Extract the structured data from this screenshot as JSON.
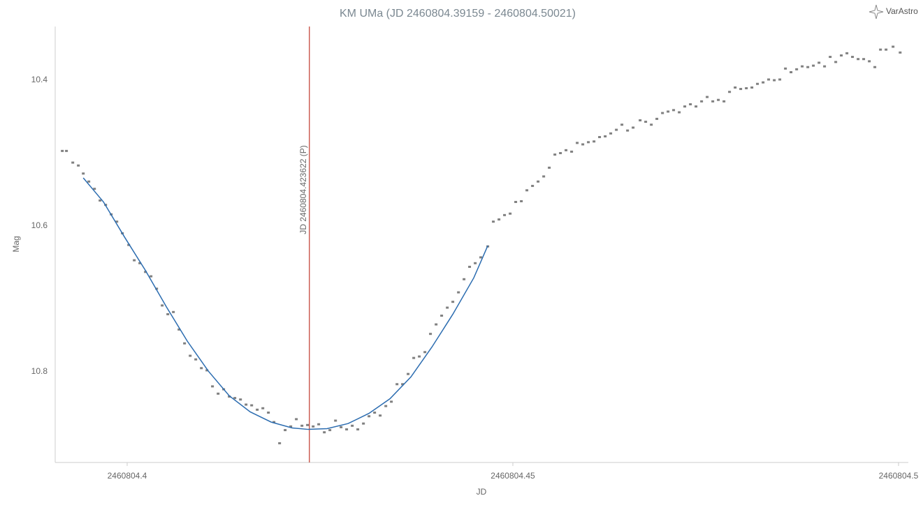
{
  "chart_data": {
    "type": "scatter",
    "title": "KM UMa (JD 2460804.39159 - 2460804.50021)",
    "logo": "VarAstro",
    "x_label": "JD",
    "y_label": "Mag",
    "xlim": [
      2460804.39067,
      2460804.50127
    ],
    "ylim": [
      10.9244,
      10.3263
    ],
    "xticks": [
      2460804.4,
      2460804.45,
      2460804.5
    ],
    "yticks": [
      10.4,
      10.6,
      10.8
    ],
    "grid": false,
    "series": [
      {
        "mode": "markers",
        "color": "#808080",
        "x": [
          2460804.39159,
          2460804.39213,
          2460804.39295,
          2460804.39367,
          2460804.39431,
          2460804.39503,
          2460804.39576,
          2460804.39648,
          2460804.39721,
          2460804.39793,
          2460804.39866,
          2460804.39938,
          2460804.4002,
          2460804.40092,
          2460804.40164,
          2460804.40237,
          2460804.40309,
          2460804.40382,
          2460804.40454,
          2460804.40527,
          2460804.40599,
          2460804.40672,
          2460804.40744,
          2460804.40817,
          2460804.40889,
          2460804.40962,
          2460804.41034,
          2460804.41106,
          2460804.41179,
          2460804.41251,
          2460804.41324,
          2460804.41396,
          2460804.41469,
          2460804.41541,
          2460804.41614,
          2460804.41686,
          2460804.41759,
          2460804.41831,
          2460804.41903,
          2460804.41976,
          2460804.42048,
          2460804.42121,
          2460804.42193,
          2460804.42266,
          2460804.42338,
          2460804.42411,
          2460804.42483,
          2460804.42556,
          2460804.42628,
          2460804.42701,
          2460804.42773,
          2460804.42845,
          2460804.42918,
          2460804.4299,
          2460804.43063,
          2460804.43135,
          2460804.43208,
          2460804.4328,
          2460804.43353,
          2460804.43425,
          2460804.43498,
          2460804.4357,
          2460804.43642,
          2460804.43715,
          2460804.43787,
          2460804.4386,
          2460804.43932,
          2460804.44005,
          2460804.44077,
          2460804.4415,
          2460804.44222,
          2460804.44295,
          2460804.44367,
          2460804.44439,
          2460804.44512,
          2460804.44584,
          2460804.44675,
          2460804.44747,
          2460804.4482,
          2460804.44892,
          2460804.44965,
          2460804.45037,
          2460804.4511,
          2460804.45182,
          2460804.45255,
          2460804.45327,
          2460804.454,
          2460804.45472,
          2460804.45545,
          2460804.45617,
          2460804.45689,
          2460804.45762,
          2460804.45834,
          2460804.45907,
          2460804.45979,
          2460804.46052,
          2460804.46124,
          2460804.46197,
          2460804.46269,
          2460804.46342,
          2460804.46414,
          2460804.46487,
          2460804.46559,
          2460804.4665,
          2460804.46722,
          2460804.46795,
          2460804.46867,
          2460804.4694,
          2460804.47012,
          2460804.47084,
          2460804.47157,
          2460804.47229,
          2460804.47302,
          2460804.47374,
          2460804.47447,
          2460804.47519,
          2460804.47592,
          2460804.47664,
          2460804.47737,
          2460804.47809,
          2460804.47882,
          2460804.47954,
          2460804.48027,
          2460804.48099,
          2460804.48171,
          2460804.48244,
          2460804.48316,
          2460804.48389,
          2460804.48461,
          2460804.48534,
          2460804.48606,
          2460804.48679,
          2460804.48751,
          2460804.48824,
          2460804.48896,
          2460804.48969,
          2460804.49041,
          2460804.49114,
          2460804.49186,
          2460804.49258,
          2460804.49331,
          2460804.49403,
          2460804.49476,
          2460804.49548,
          2460804.49621,
          2460804.49693,
          2460804.49766,
          2460804.49838,
          2460804.49929,
          2460804.50021
        ],
        "values": [
          10.497,
          10.497,
          10.513,
          10.517,
          10.528,
          10.539,
          10.549,
          10.565,
          10.571,
          10.584,
          10.594,
          10.61,
          10.626,
          10.647,
          10.651,
          10.663,
          10.669,
          10.686,
          10.709,
          10.721,
          10.718,
          10.742,
          10.761,
          10.778,
          10.783,
          10.795,
          10.798,
          10.82,
          10.83,
          10.824,
          10.834,
          10.836,
          10.838,
          10.845,
          10.846,
          10.852,
          10.85,
          10.856,
          10.869,
          10.898,
          10.88,
          10.875,
          10.865,
          10.874,
          10.873,
          10.875,
          10.872,
          10.883,
          10.88,
          10.867,
          10.876,
          10.879,
          10.874,
          10.879,
          10.871,
          10.861,
          10.856,
          10.86,
          10.847,
          10.841,
          10.817,
          10.817,
          10.803,
          10.781,
          10.779,
          10.773,
          10.748,
          10.735,
          10.723,
          10.712,
          10.704,
          10.691,
          10.673,
          10.656,
          10.651,
          10.643,
          10.628,
          10.594,
          10.591,
          10.585,
          10.583,
          10.567,
          10.566,
          10.551,
          10.545,
          10.539,
          10.532,
          10.52,
          10.502,
          10.5,
          10.496,
          10.498,
          10.486,
          10.488,
          10.485,
          10.484,
          10.478,
          10.477,
          10.473,
          10.468,
          10.461,
          10.469,
          10.465,
          10.455,
          10.457,
          10.461,
          10.453,
          10.445,
          10.443,
          10.441,
          10.444,
          10.436,
          10.433,
          10.436,
          10.429,
          10.423,
          10.429,
          10.427,
          10.429,
          10.416,
          10.41,
          10.412,
          10.411,
          10.41,
          10.405,
          10.403,
          10.399,
          10.4,
          10.399,
          10.384,
          10.389,
          10.385,
          10.381,
          10.382,
          10.38,
          10.376,
          10.381,
          10.368,
          10.375,
          10.366,
          10.363,
          10.368,
          10.371,
          10.371,
          10.374,
          10.382,
          10.358,
          10.358,
          10.354,
          10.362
        ]
      },
      {
        "mode": "line",
        "color": "#2b6cb0",
        "x": [
          2460804.39431,
          2460804.39693,
          2460804.39965,
          2460804.40237,
          2460804.40509,
          2460804.4078,
          2460804.41052,
          2460804.41324,
          2460804.41595,
          2460804.41867,
          2460804.42139,
          2460804.42347,
          2460804.42592,
          2460804.42864,
          2460804.43135,
          2460804.43407,
          2460804.43679,
          2460804.43951,
          2460804.44222,
          2460804.44494,
          2460804.44675
        ],
        "values": [
          10.534,
          10.567,
          10.615,
          10.661,
          10.711,
          10.758,
          10.799,
          10.833,
          10.855,
          10.869,
          10.877,
          10.879,
          10.878,
          10.871,
          10.857,
          10.837,
          10.807,
          10.766,
          10.721,
          10.671,
          10.627
        ]
      }
    ],
    "annotations": [
      {
        "x": 2460804.423622,
        "label": "JD 2460804.423622 (P)",
        "color": "#c0392b"
      }
    ]
  }
}
